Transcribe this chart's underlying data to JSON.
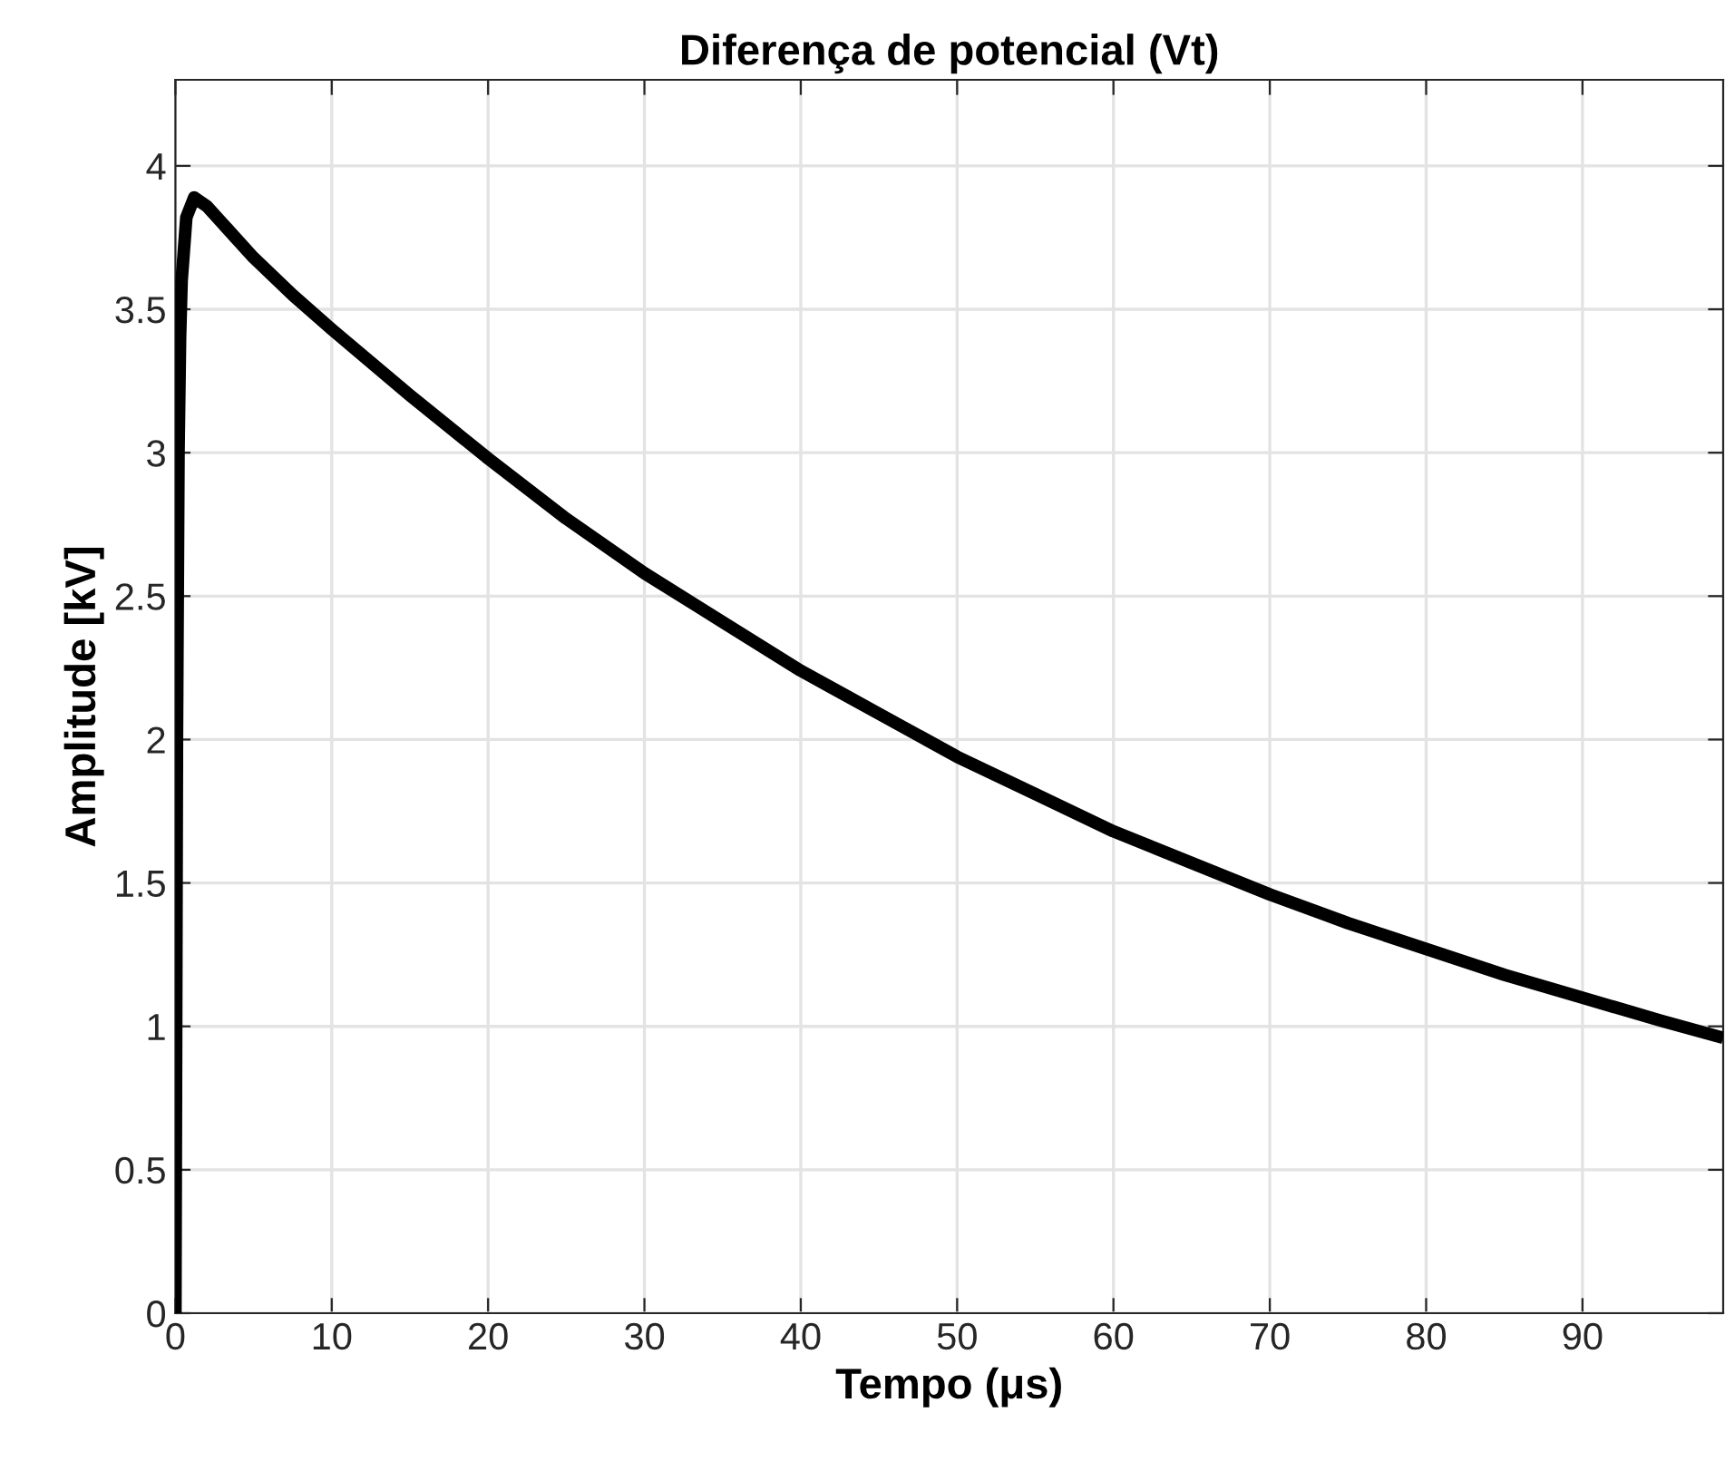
{
  "chart_data": {
    "type": "line",
    "title": "Diferença de potencial (Vt)",
    "xlabel": "Tempo (μs)",
    "ylabel": "Amplitude [kV]",
    "series": [
      {
        "color": "#000000",
        "x": [
          0,
          0.05,
          0.1,
          0.2,
          0.3,
          0.4,
          0.7,
          1.2,
          2,
          3,
          5,
          7.5,
          10,
          15,
          20,
          25,
          30,
          35,
          40,
          45,
          50,
          55,
          60,
          65,
          70,
          75,
          80,
          85,
          90,
          95,
          99
        ],
        "values": [
          0,
          1.0,
          2.0,
          3.0,
          3.4,
          3.6,
          3.82,
          3.89,
          3.86,
          3.8,
          3.68,
          3.55,
          3.43,
          3.2,
          2.98,
          2.77,
          2.58,
          2.41,
          2.24,
          2.09,
          1.94,
          1.81,
          1.68,
          1.57,
          1.46,
          1.36,
          1.27,
          1.18,
          1.1,
          1.02,
          0.96
        ]
      }
    ],
    "xlim": [
      0,
      99
    ],
    "xticks": [
      0,
      10,
      20,
      30,
      40,
      50,
      60,
      70,
      80,
      90
    ],
    "ylim": [
      0,
      4.3
    ],
    "yticks": [
      0,
      0.5,
      1,
      1.5,
      2,
      2.5,
      3,
      3.5,
      4
    ],
    "grid": true,
    "legend": false,
    "marker": "none",
    "line_style": "solid"
  }
}
